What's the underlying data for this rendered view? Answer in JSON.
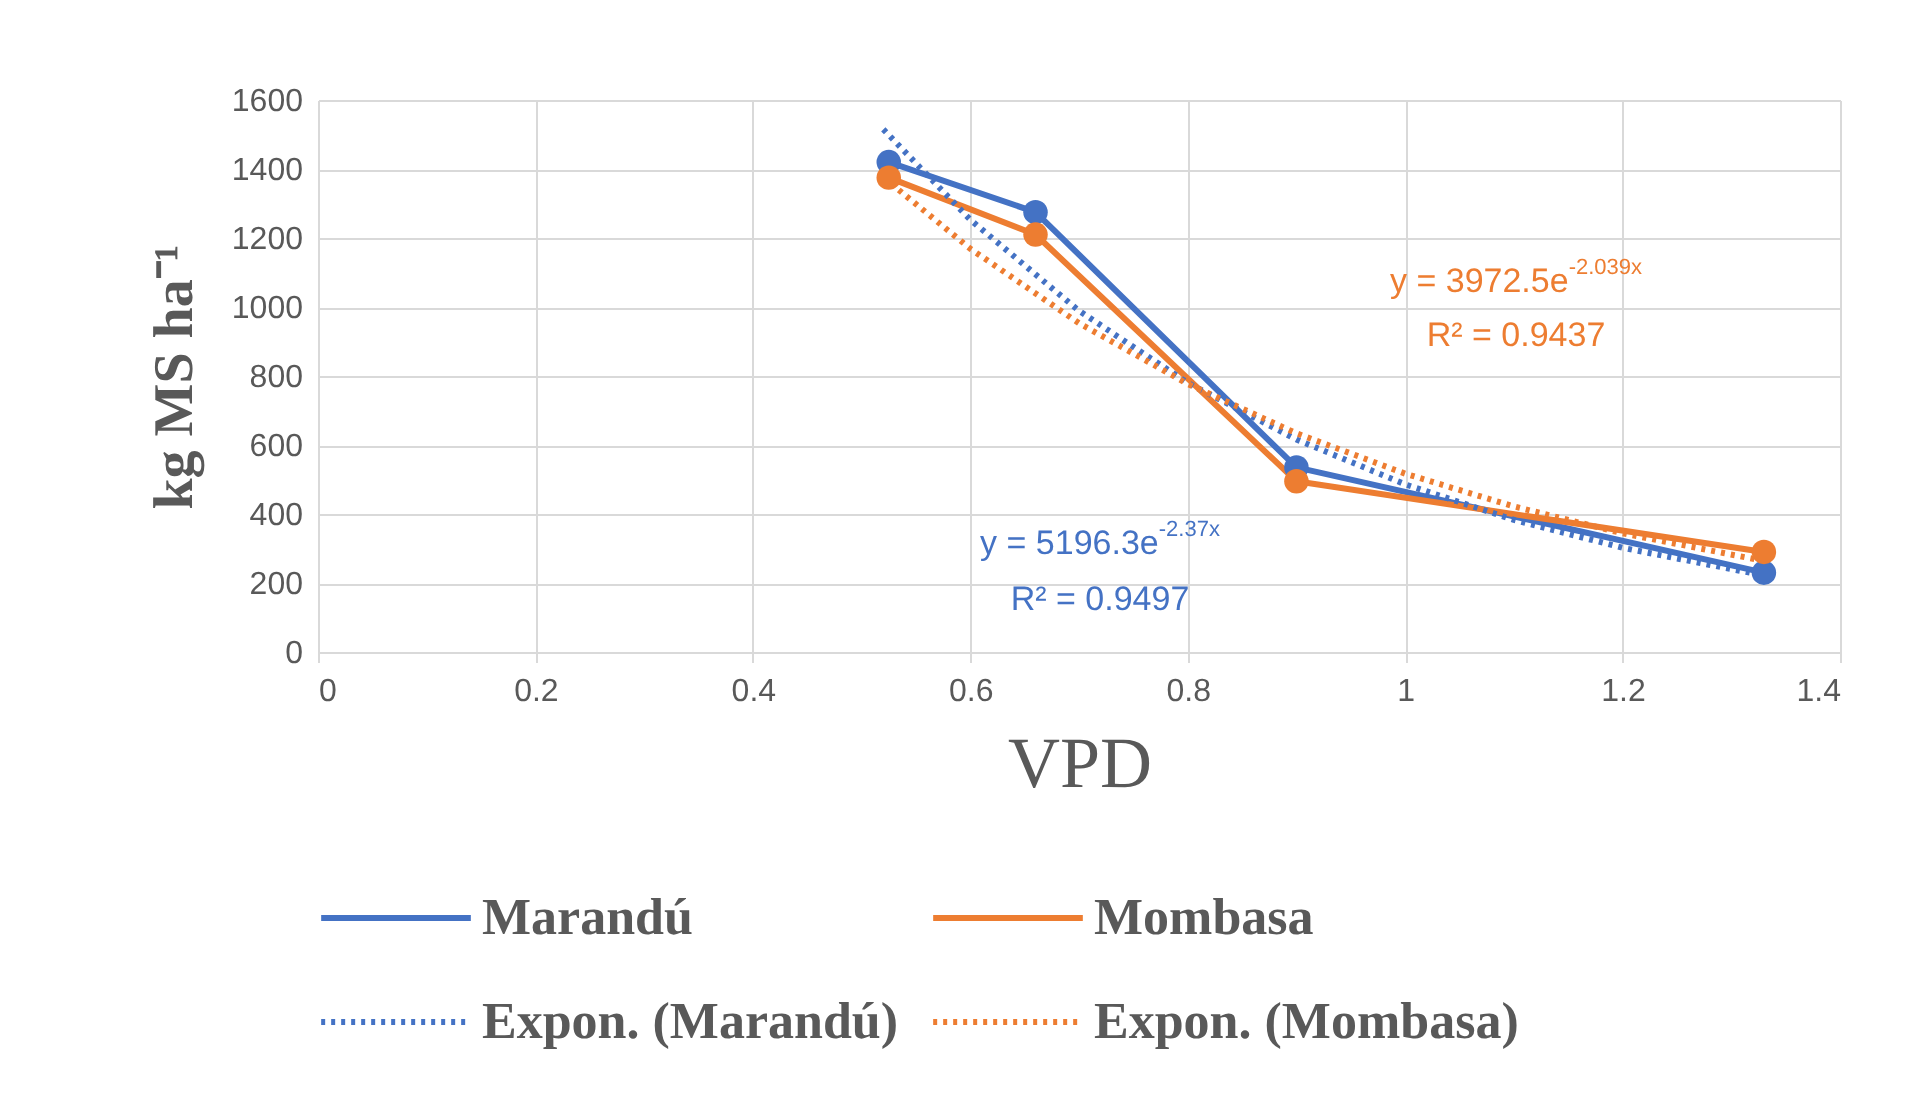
{
  "chart_data": {
    "type": "line",
    "xlabel": "VPD",
    "ylabel": "kg MS ha⁻¹",
    "xlim": [
      0,
      1.4
    ],
    "xticks": [
      0,
      0.2,
      0.4,
      0.6,
      0.8,
      1,
      1.2,
      1.4
    ],
    "ylim": [
      0,
      1600
    ],
    "yticks": [
      0,
      200,
      400,
      600,
      800,
      1000,
      1200,
      1400,
      1600
    ],
    "grid": true,
    "legend": "bottom",
    "x": [
      0.525,
      0.66,
      0.9,
      1.33
    ],
    "series": [
      {
        "name": "Marandú",
        "color": "#4472c4",
        "marker": "circle",
        "line_style": "solid",
        "values": [
          1420,
          1275,
          535,
          230
        ]
      },
      {
        "name": "Mombasa",
        "color": "#ed7d31",
        "marker": "circle",
        "line_style": "solid",
        "values": [
          1375,
          1210,
          495,
          290
        ]
      },
      {
        "name": "Expon. (Marandú)",
        "type": "line",
        "color": "#4472c4",
        "marker": "none",
        "line_style": "dotted",
        "x": [
          0.52,
          0.6,
          0.7,
          0.8,
          0.9,
          1.0,
          1.1,
          1.2,
          1.33
        ],
        "values": [
          1515,
          1253,
          989,
          780,
          616,
          486,
          383,
          302,
          222
        ]
      },
      {
        "name": "Expon. (Mombasa)",
        "type": "line",
        "color": "#ed7d31",
        "marker": "none",
        "line_style": "dotted",
        "x": [
          0.52,
          0.6,
          0.7,
          0.8,
          0.9,
          1.0,
          1.1,
          1.2,
          1.33
        ],
        "values": [
          1376,
          1169,
          953,
          777,
          634,
          517,
          422,
          344,
          264
        ]
      }
    ],
    "annotations": [
      "y = 5196.3e$^{-2.37x}$",
      "R² = 0.9497",
      "y = 3972.5e$^{-2.039x}$",
      "R² = 0.9437"
    ]
  }
}
